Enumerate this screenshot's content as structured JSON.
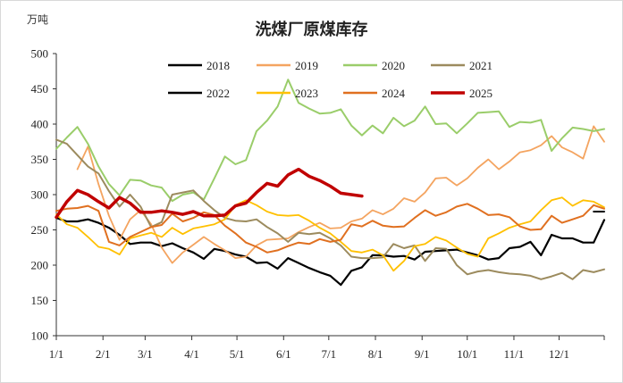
{
  "chart_data": {
    "type": "line",
    "title": "洗煤厂原煤库存",
    "unit_label": "万吨",
    "ylim": [
      100,
      500
    ],
    "yticks": [
      100,
      150,
      200,
      250,
      300,
      350,
      400,
      450,
      500
    ],
    "x_range": [
      "1/1",
      "12/31"
    ],
    "xticks": [
      "1/1",
      "2/1",
      "3/1",
      "4/1",
      "5/1",
      "6/1",
      "7/1",
      "8/1",
      "9/1",
      "10/1",
      "11/1",
      "12/1"
    ],
    "grid": false,
    "legend_position": "top-center",
    "series": [
      {
        "name": "2018",
        "color": "#000000",
        "width": 2.2,
        "x": [
          "1/1",
          "1/8",
          "1/15",
          "1/22",
          "1/29",
          "2/5",
          "2/12",
          "2/19",
          "2/26",
          "3/5",
          "3/12",
          "3/19",
          "3/26",
          "4/2",
          "4/9",
          "4/16",
          "4/23",
          "4/30",
          "5/7",
          "5/14",
          "5/21",
          "5/28",
          "6/4",
          "6/11",
          "6/18",
          "6/25",
          "7/2",
          "7/9",
          "7/16",
          "7/23",
          "7/30",
          "8/6",
          "8/13",
          "8/20",
          "8/27",
          "9/3",
          "9/10",
          "9/17",
          "9/24",
          "10/1",
          "10/8",
          "10/15",
          "10/22",
          "10/29",
          "11/5",
          "11/12",
          "11/19",
          "11/26",
          "12/3",
          "12/10",
          "12/17",
          "12/24",
          "12/31"
        ],
        "values": [
          267,
          262,
          262,
          265,
          260,
          253,
          243,
          230,
          232,
          232,
          227,
          231,
          224,
          218,
          209,
          223,
          220,
          215,
          212,
          203,
          204,
          195,
          210,
          203,
          196,
          190,
          185,
          172,
          192,
          197,
          214,
          214,
          212,
          213,
          208,
          219,
          220,
          221,
          222,
          218,
          214,
          208,
          210,
          224,
          226,
          233,
          214,
          243,
          238,
          238,
          232,
          232,
          264
        ]
      },
      {
        "name": "2019",
        "color": "#f4a460",
        "width": 1.8,
        "x": [
          "1/15",
          "1/22",
          "1/29",
          "2/5",
          "2/12",
          "2/19",
          "2/26",
          "3/5",
          "3/12",
          "3/19",
          "3/26",
          "4/2",
          "4/9",
          "4/16",
          "4/23",
          "4/30",
          "5/7",
          "5/14",
          "5/21",
          "5/28",
          "6/4",
          "6/11",
          "6/18",
          "6/25",
          "7/2",
          "7/9",
          "7/16",
          "7/23",
          "7/30",
          "8/6",
          "8/13",
          "8/20",
          "8/27",
          "9/3",
          "9/10",
          "9/17",
          "9/24",
          "10/1",
          "10/8",
          "10/15",
          "10/22",
          "10/29",
          "11/5",
          "11/12",
          "11/19",
          "11/26",
          "12/3",
          "12/10",
          "12/17",
          "12/24",
          "12/31"
        ],
        "values": [
          336,
          368,
          315,
          270,
          236,
          265,
          278,
          258,
          225,
          203,
          218,
          229,
          240,
          230,
          221,
          210,
          212,
          228,
          236,
          237,
          238,
          247,
          254,
          260,
          252,
          253,
          262,
          266,
          278,
          272,
          280,
          295,
          290,
          303,
          323,
          324,
          313,
          323,
          338,
          350,
          336,
          347,
          360,
          363,
          370,
          383,
          367,
          360,
          351,
          397,
          375
        ]
      },
      {
        "name": "2020",
        "color": "#9acd6a",
        "width": 2.0,
        "x": [
          "1/1",
          "1/8",
          "1/15",
          "1/22",
          "1/29",
          "2/5",
          "2/12",
          "2/19",
          "2/26",
          "3/5",
          "3/12",
          "3/19",
          "3/26",
          "4/2",
          "4/9",
          "4/16",
          "4/23",
          "4/30",
          "5/7",
          "5/14",
          "5/21",
          "5/28",
          "6/4",
          "6/11",
          "6/18",
          "6/25",
          "7/2",
          "7/9",
          "7/16",
          "7/23",
          "7/30",
          "8/6",
          "8/13",
          "8/20",
          "8/27",
          "9/3",
          "9/10",
          "9/17",
          "9/24",
          "10/1",
          "10/8",
          "10/15",
          "10/22",
          "10/29",
          "11/5",
          "11/12",
          "11/19",
          "11/26",
          "12/3",
          "12/10",
          "12/17",
          "12/24",
          "12/31"
        ],
        "values": [
          365,
          381,
          396,
          372,
          340,
          315,
          299,
          321,
          320,
          313,
          310,
          291,
          300,
          303,
          293,
          323,
          354,
          343,
          349,
          390,
          405,
          425,
          463,
          430,
          422,
          415,
          416,
          421,
          398,
          384,
          398,
          387,
          409,
          397,
          405,
          425,
          400,
          401,
          387,
          401,
          416,
          417,
          418,
          396,
          403,
          402,
          406,
          362,
          380,
          395,
          393,
          390,
          393
        ]
      },
      {
        "name": "2021",
        "color": "#9c8b5e",
        "width": 2.0,
        "x": [
          "1/1",
          "1/8",
          "1/15",
          "1/22",
          "1/29",
          "2/5",
          "2/12",
          "2/19",
          "2/26",
          "3/5",
          "3/12",
          "3/19",
          "3/26",
          "4/2",
          "4/9",
          "4/16",
          "4/23",
          "4/30",
          "5/7",
          "5/14",
          "5/21",
          "5/28",
          "6/4",
          "6/11",
          "6/18",
          "6/25",
          "7/2",
          "7/9",
          "7/16",
          "7/23",
          "7/30",
          "8/6",
          "8/13",
          "8/20",
          "8/27",
          "9/3",
          "9/10",
          "9/17",
          "9/24",
          "10/1",
          "10/8",
          "10/15",
          "10/22",
          "10/29",
          "11/5",
          "11/12",
          "11/19",
          "11/26",
          "12/3",
          "12/10",
          "12/17",
          "12/24",
          "12/31"
        ],
        "values": [
          378,
          372,
          356,
          340,
          330,
          305,
          283,
          300,
          283,
          254,
          261,
          300,
          303,
          306,
          291,
          278,
          267,
          263,
          262,
          265,
          254,
          245,
          233,
          246,
          244,
          246,
          238,
          228,
          212,
          210,
          210,
          211,
          230,
          224,
          228,
          206,
          224,
          223,
          200,
          187,
          191,
          193,
          190,
          188,
          187,
          185,
          180,
          184,
          189,
          180,
          193,
          190,
          194
        ]
      },
      {
        "name": "2022",
        "color": "#000000",
        "width": 2.0,
        "x": [
          "12/24",
          "12/31"
        ],
        "values": [
          276,
          276
        ]
      },
      {
        "name": "2023",
        "color": "#ffc000",
        "width": 1.8,
        "x": [
          "1/1",
          "1/8",
          "1/15",
          "1/22",
          "1/29",
          "2/5",
          "2/12",
          "2/19",
          "2/26",
          "3/5",
          "3/12",
          "3/19",
          "3/26",
          "4/2",
          "4/9",
          "4/16",
          "4/23",
          "4/30",
          "5/7",
          "5/14",
          "5/21",
          "5/28",
          "6/4",
          "6/11",
          "6/18",
          "6/25",
          "7/2",
          "7/9",
          "7/16",
          "7/23",
          "7/30",
          "8/6",
          "8/13",
          "8/20",
          "8/27",
          "9/3",
          "9/10",
          "9/17",
          "9/24",
          "10/1",
          "10/8",
          "10/15",
          "10/22",
          "10/29",
          "11/5",
          "11/12",
          "11/19",
          "11/26",
          "12/3",
          "12/10",
          "12/17",
          "12/24",
          "12/31"
        ],
        "values": [
          272,
          258,
          253,
          240,
          226,
          223,
          215,
          238,
          242,
          246,
          240,
          253,
          244,
          252,
          255,
          258,
          265,
          285,
          292,
          285,
          276,
          271,
          270,
          271,
          263,
          253,
          245,
          233,
          220,
          218,
          222,
          214,
          192,
          206,
          227,
          230,
          240,
          235,
          225,
          216,
          212,
          238,
          245,
          253,
          258,
          262,
          278,
          292,
          296,
          284,
          292,
          290,
          282
        ]
      },
      {
        "name": "2024",
        "color": "#e07020",
        "width": 2.0,
        "x": [
          "1/1",
          "1/8",
          "1/15",
          "1/22",
          "1/29",
          "2/5",
          "2/12",
          "2/19",
          "2/26",
          "3/5",
          "3/12",
          "3/19",
          "3/26",
          "4/2",
          "4/9",
          "4/16",
          "4/23",
          "4/30",
          "5/7",
          "5/14",
          "5/21",
          "5/28",
          "6/4",
          "6/11",
          "6/18",
          "6/25",
          "7/2",
          "7/9",
          "7/16",
          "7/23",
          "7/30",
          "8/6",
          "8/13",
          "8/20",
          "8/27",
          "9/3",
          "9/10",
          "9/17",
          "9/24",
          "10/1",
          "10/8",
          "10/15",
          "10/22",
          "10/29",
          "11/5",
          "11/12",
          "11/19",
          "11/26",
          "12/3",
          "12/10",
          "12/17",
          "12/24",
          "12/31"
        ],
        "values": [
          277,
          280,
          281,
          284,
          277,
          233,
          228,
          240,
          247,
          254,
          257,
          273,
          262,
          267,
          275,
          271,
          256,
          245,
          232,
          226,
          218,
          221,
          227,
          232,
          230,
          237,
          233,
          236,
          258,
          255,
          263,
          256,
          254,
          255,
          267,
          278,
          270,
          275,
          283,
          287,
          280,
          271,
          272,
          268,
          255,
          250,
          251,
          270,
          260,
          265,
          270,
          285,
          280
        ]
      },
      {
        "name": "2025",
        "color": "#c00000",
        "width": 3.5,
        "x": [
          "1/1",
          "1/8",
          "1/15",
          "1/22",
          "1/29",
          "2/5",
          "2/12",
          "2/19",
          "2/26",
          "3/5",
          "3/12",
          "3/19",
          "3/26",
          "4/2",
          "4/9",
          "4/16",
          "4/23",
          "4/30",
          "5/7",
          "5/14",
          "5/21",
          "5/28",
          "6/4",
          "6/11",
          "6/18",
          "6/25",
          "7/2",
          "7/9",
          "7/16",
          "7/23"
        ],
        "values": [
          268,
          290,
          306,
          300,
          290,
          281,
          296,
          288,
          275,
          275,
          277,
          275,
          272,
          276,
          270,
          270,
          271,
          284,
          288,
          303,
          316,
          312,
          328,
          336,
          326,
          320,
          312,
          302,
          300,
          298
        ]
      }
    ]
  }
}
